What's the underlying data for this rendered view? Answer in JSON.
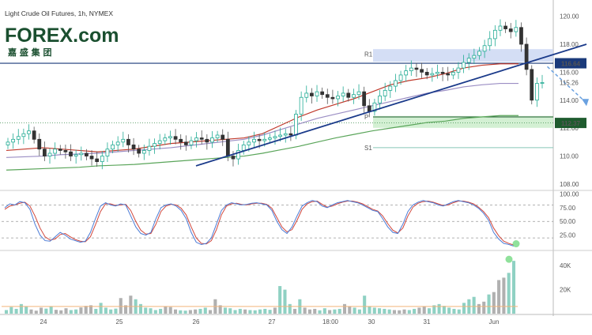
{
  "header": {
    "title": "Light Crude Oil Futures, 1h, NYMEX",
    "logo_text": "FOREX.com",
    "logo_sub": "嘉 盛 集 团"
  },
  "colors": {
    "up": "#22ab94",
    "down": "#555555",
    "price_hline": "#1a3a7a",
    "trendline": "#1a3a8a",
    "ema_red": "#c0392b",
    "ema_purple": "#9b8ec4",
    "ema_green": "#5aa55a",
    "r1_zone": "#c9d6f2",
    "support_zone": "#c8ecc8",
    "stoch_k": "#4a7bd6",
    "stoch_d": "#d0463b",
    "vol_up": "#8fd1c3",
    "vol_down": "#b0b0b0",
    "badge_blue": "#1a3a7a",
    "badge_green": "#1e5b2e",
    "arrow": "#6aa1e0"
  },
  "chart_data": [
    {
      "type": "candlestick",
      "title": "Light Crude Oil Futures, 1h, NYMEX",
      "x_ticks": [
        "24",
        "25",
        "26",
        "27",
        "18:00",
        "30",
        "31",
        "Jun"
      ],
      "y_ticks": [
        108.0,
        110.0,
        112.0,
        114.0,
        116.0,
        118.0,
        120.0
      ],
      "ylim": [
        107.6,
        120.6
      ],
      "price_labels": {
        "current": "115.26",
        "resistance": "116.64",
        "support": "112.37"
      },
      "levels": {
        "R1": 117.3,
        "P": 112.8,
        "S1": 110.6
      },
      "level_names": [
        "R1",
        "P",
        "S1"
      ],
      "key_lines": {
        "resistance_hline": 116.64,
        "support_line": 112.37
      },
      "trendline": {
        "from": [
          26.0,
          109.3
        ],
        "to": [
          35.3,
          118.0
        ]
      },
      "projection_arrow": {
        "from": [
          34.75,
          116.4
        ],
        "to": [
          35.3,
          113.8
        ]
      },
      "candles_close": [
        111.0,
        111.2,
        111.4,
        111.6,
        111.8,
        111.2,
        110.5,
        110.0,
        110.2,
        110.5,
        110.4,
        110.3,
        110.0,
        110.1,
        110.2,
        110.0,
        109.8,
        109.6,
        110.0,
        110.5,
        110.8,
        111.0,
        111.2,
        110.8,
        110.5,
        110.2,
        110.4,
        110.7,
        110.9,
        111.1,
        111.3,
        111.4,
        111.2,
        111.0,
        110.8,
        111.1,
        111.3,
        111.2,
        111.0,
        111.3,
        111.5,
        111.2,
        110.0,
        109.8,
        110.4,
        110.8,
        111.0,
        111.2,
        111.1,
        111.2,
        111.3,
        111.4,
        111.5,
        111.6,
        111.5,
        113.0,
        114.2,
        114.5,
        114.3,
        114.6,
        114.4,
        114.2,
        114.1,
        114.3,
        114.5,
        114.2,
        114.4,
        114.6,
        113.6,
        113.2,
        113.8,
        114.3,
        114.7,
        115.0,
        115.4,
        115.8,
        116.1,
        116.3,
        116.2,
        116.0,
        115.8,
        115.9,
        116.0,
        115.9,
        115.8,
        116.0,
        116.3,
        116.7,
        117.0,
        117.2,
        117.5,
        117.9,
        118.4,
        119.0,
        119.3,
        119.1,
        118.9,
        119.2,
        118.0,
        116.2,
        114.0,
        115.2,
        115.26
      ],
      "sma_red": [
        110.4,
        110.5,
        110.6,
        110.5,
        110.4,
        110.3,
        110.4,
        110.5,
        110.7,
        110.9,
        111.0,
        111.1,
        111.2,
        111.3,
        111.6,
        112.2,
        112.8,
        113.3,
        113.7,
        114.1,
        114.6,
        115.1,
        115.4,
        115.6,
        115.9,
        116.3,
        116.5,
        116.6,
        116.6
      ],
      "sma_purple": [
        109.9,
        109.95,
        110.0,
        110.1,
        110.15,
        110.2,
        110.3,
        110.4,
        110.5,
        110.6,
        110.75,
        110.9,
        111.05,
        111.2,
        111.5,
        111.9,
        112.3,
        112.7,
        113.0,
        113.3,
        113.6,
        113.9,
        114.2,
        114.5,
        114.7,
        114.95,
        115.1,
        115.2,
        115.2
      ],
      "sma_green": [
        109.0,
        109.05,
        109.1,
        109.15,
        109.2,
        109.3,
        109.35,
        109.4,
        109.5,
        109.6,
        109.7,
        109.8,
        109.9,
        110.0,
        110.2,
        110.45,
        110.7,
        111.0,
        111.3,
        111.55,
        111.8,
        112.0,
        112.2,
        112.4,
        112.5,
        112.7,
        112.8,
        112.9,
        112.9
      ]
    },
    {
      "type": "line",
      "name": "stochastic",
      "y_ticks": [
        25.0,
        50.0,
        75.0,
        100.0
      ],
      "ylim": [
        0,
        105
      ],
      "levels": [
        20,
        50,
        80
      ],
      "k_values": [
        75,
        82,
        80,
        86,
        84,
        72,
        45,
        25,
        15,
        14,
        22,
        30,
        25,
        18,
        15,
        12,
        14,
        30,
        55,
        78,
        84,
        80,
        78,
        82,
        80,
        60,
        40,
        28,
        25,
        30,
        55,
        75,
        80,
        82,
        78,
        70,
        55,
        30,
        12,
        8,
        10,
        20,
        45,
        70,
        80,
        84,
        82,
        80,
        81,
        83,
        84,
        82,
        80,
        70,
        50,
        35,
        28,
        40,
        60,
        78,
        84,
        88,
        86,
        78,
        75,
        80,
        84,
        86,
        88,
        86,
        84,
        80,
        75,
        70,
        68,
        55,
        40,
        30,
        28,
        45,
        68,
        80,
        85,
        88,
        86,
        84,
        80,
        78,
        82,
        86,
        88,
        86,
        84,
        80,
        74,
        65,
        52,
        30,
        18,
        10,
        8,
        5
      ],
      "d_values": [
        72,
        78,
        80,
        83,
        85,
        78,
        60,
        38,
        22,
        16,
        18,
        26,
        28,
        22,
        17,
        14,
        13,
        22,
        44,
        68,
        82,
        82,
        79,
        80,
        81,
        70,
        50,
        34,
        27,
        28,
        45,
        68,
        78,
        81,
        80,
        74,
        62,
        40,
        20,
        10,
        9,
        15,
        35,
        62,
        78,
        82,
        83,
        81,
        80,
        82,
        83,
        83,
        81,
        74,
        57,
        40,
        31,
        35,
        52,
        72,
        82,
        86,
        87,
        81,
        76,
        78,
        82,
        85,
        87,
        87,
        85,
        82,
        77,
        72,
        69,
        60,
        46,
        34,
        29,
        38,
        60,
        76,
        83,
        86,
        87,
        85,
        82,
        79,
        80,
        84,
        87,
        87,
        85,
        82,
        76,
        68,
        57,
        38,
        24,
        14,
        10,
        7
      ]
    },
    {
      "type": "bar",
      "name": "volume",
      "y_ticks": [
        "20K",
        "40K"
      ],
      "y_tick_values": [
        20000,
        40000
      ],
      "ylim": [
        0,
        52000
      ],
      "values": [
        3000,
        5500,
        4000,
        8000,
        6000,
        3500,
        2500,
        5000,
        4200,
        6000,
        3200,
        2800,
        4500,
        3000,
        3500,
        5200,
        6500,
        7000,
        4000,
        9000,
        5000,
        3500,
        4200,
        13000,
        7000,
        15000,
        12000,
        8000,
        5000,
        4500,
        3000,
        4000,
        6000,
        5500,
        3500,
        2800,
        2500,
        3000,
        3500,
        4000,
        5000,
        3000,
        12000,
        7000,
        5000,
        4500,
        3000,
        4000,
        3500,
        3000,
        2800,
        3500,
        4000,
        3200,
        5000,
        23000,
        20000,
        8000,
        4000,
        12000,
        5000,
        3500,
        4000,
        2800,
        4500,
        3000,
        3500,
        4000,
        8000,
        6000,
        5000,
        3500,
        15000,
        6000,
        5000,
        4500,
        4000,
        3500,
        3000,
        2800,
        3500,
        3000,
        4000,
        5000,
        6000,
        4500,
        7000,
        8000,
        6500,
        5000,
        4000,
        3500,
        9000,
        12000,
        14000,
        8000,
        10000,
        16000,
        18000,
        28000,
        30000,
        34000,
        44000
      ],
      "moving_average": 6000
    }
  ]
}
